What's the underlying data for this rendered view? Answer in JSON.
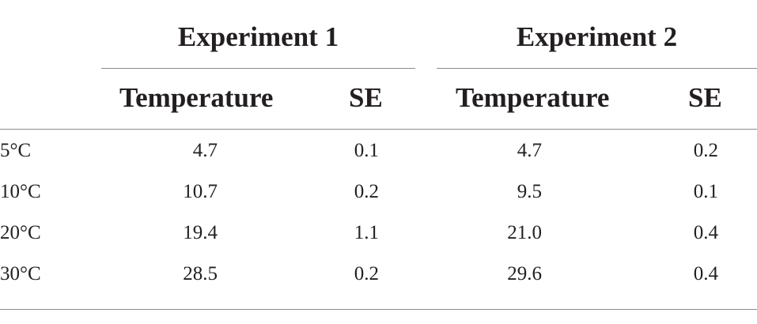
{
  "table": {
    "groups": [
      {
        "label": "Experiment 1"
      },
      {
        "label": "Experiment 2"
      }
    ],
    "subheaders": {
      "exp1_temperature": "Temperature",
      "exp1_se": "SE",
      "exp2_temperature": "Temperature",
      "exp2_se": "SE"
    },
    "rows": [
      {
        "label": "5°C",
        "exp1_temp": "4.7",
        "exp1_se": "0.1",
        "exp2_temp": "4.7",
        "exp2_se": "0.2"
      },
      {
        "label": "10°C",
        "exp1_temp": "10.7",
        "exp1_se": "0.2",
        "exp2_temp": "9.5",
        "exp2_se": "0.1"
      },
      {
        "label": "20°C",
        "exp1_temp": "19.4",
        "exp1_se": "1.1",
        "exp2_temp": "21.0",
        "exp2_se": "0.4"
      },
      {
        "label": "30°C",
        "exp1_temp": "28.5",
        "exp1_se": "0.2",
        "exp2_temp": "29.6",
        "exp2_se": "0.4"
      }
    ]
  }
}
